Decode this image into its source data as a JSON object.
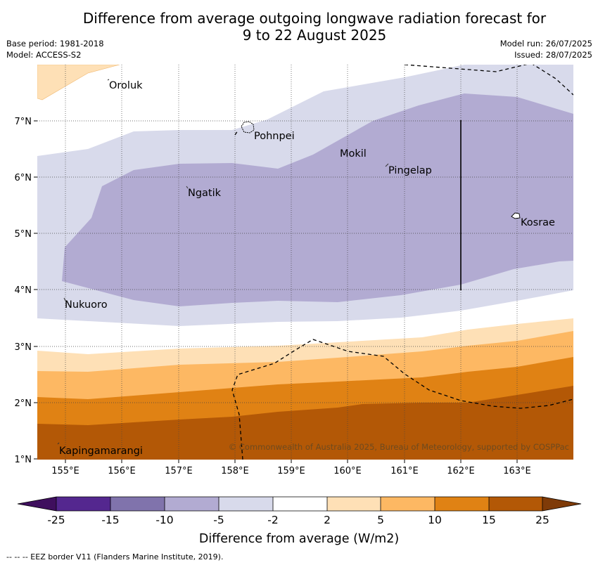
{
  "title_line1": "Difference from average outgoing longwave radiation forecast for",
  "title_line2": "9 to 22 August 2025",
  "base_period": "Base period: 1981-2018",
  "model": "Model: ACCESS-S2",
  "model_run": "Model run: 26/07/2025",
  "issued": "Issued: 28/07/2025",
  "places": [
    "Oroluk",
    "Pohnpei",
    "Mokil",
    "Pingelap",
    "Ngatik",
    "Kosrae",
    "Nukuoro",
    "Kapingamarangi"
  ],
  "lat_ticks": [
    "7°N",
    "6°N",
    "5°N",
    "4°N",
    "3°N",
    "2°N",
    "1°N"
  ],
  "lon_ticks": [
    "155°E",
    "156°E",
    "157°E",
    "158°E",
    "159°E",
    "160°E",
    "161°E",
    "162°E",
    "163°E"
  ],
  "copyright": "© Commonwealth of Australia 2025, Bureau of Meteorology, supported by COSPPac",
  "colorbar": {
    "ticks": [
      "-25",
      "-15",
      "-10",
      "-5",
      "-2",
      "2",
      "5",
      "10",
      "15",
      "25"
    ],
    "colors": [
      "#3f0f5e",
      "#54278f",
      "#8073ac",
      "#b2abd2",
      "#d8daeb",
      "#ffffff",
      "#fee0b6",
      "#fdb863",
      "#e08214",
      "#b35806",
      "#7f3b08"
    ],
    "label": "Difference from average (W/m2)"
  },
  "footer": "--  --  -- EEZ border V11 (Flanders Marine Institute, 2019)."
}
